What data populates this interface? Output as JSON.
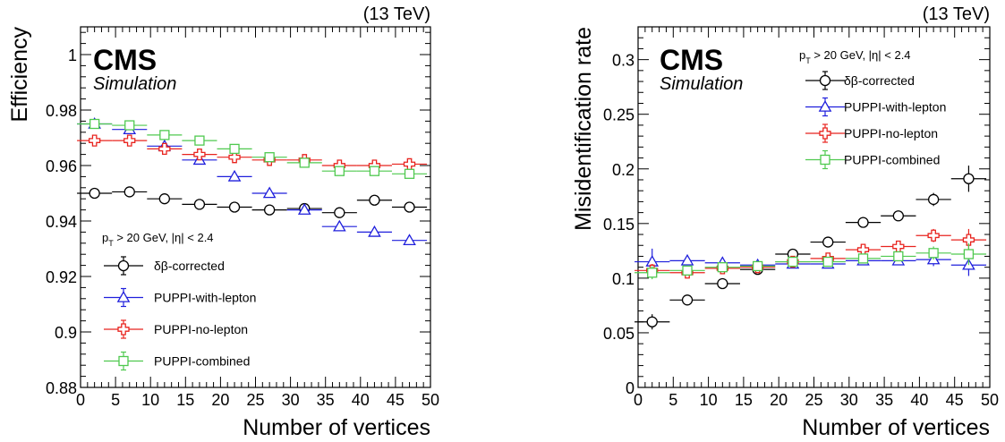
{
  "chart_data": [
    {
      "type": "scatter",
      "energy": "(13 TeV)",
      "experiment": "CMS",
      "sublabel": "Simulation",
      "cut_label": {
        "p": "p",
        "sub": "T",
        "rest": " > 20 GeV, |η| < 2.4"
      },
      "xlabel": "Number of vertices",
      "ylabel": "Efficiency",
      "xlim": [
        0,
        50
      ],
      "ylim": [
        0.88,
        1.01
      ],
      "xticks": [
        0,
        5,
        10,
        15,
        20,
        25,
        30,
        35,
        40,
        45,
        50
      ],
      "yticks": [
        0.88,
        0.9,
        0.92,
        0.94,
        0.96,
        0.98,
        1
      ],
      "ytick_labels": [
        "0.88",
        "0.9",
        "0.92",
        "0.94",
        "0.96",
        "0.98",
        "1"
      ],
      "x": [
        2,
        7,
        12,
        17,
        22,
        27,
        32,
        37,
        42,
        47
      ],
      "xerr": 2.5,
      "legend_position": "bottom-left",
      "series": [
        {
          "name": "δβ-corrected",
          "marker": "circle",
          "color": "#000000",
          "values": [
            0.95,
            0.9505,
            0.948,
            0.946,
            0.945,
            0.944,
            0.9445,
            0.943,
            0.9475,
            0.945
          ],
          "yerr": [
            0.0015,
            0.0012,
            0.001,
            0.001,
            0.001,
            0.001,
            0.001,
            0.001,
            0.001,
            0.0015
          ]
        },
        {
          "name": "PUPPI-with-lepton",
          "marker": "triangle",
          "color": "#1f1fdc",
          "values": [
            0.975,
            0.973,
            0.967,
            0.962,
            0.956,
            0.95,
            0.944,
            0.938,
            0.936,
            0.933
          ],
          "yerr": [
            0.0012,
            0.001,
            0.001,
            0.001,
            0.001,
            0.001,
            0.001,
            0.001,
            0.001,
            0.0015
          ]
        },
        {
          "name": "PUPPI-no-lepton",
          "marker": "cross",
          "color": "#e8231e",
          "values": [
            0.969,
            0.969,
            0.966,
            0.964,
            0.963,
            0.962,
            0.962,
            0.96,
            0.96,
            0.9605
          ],
          "yerr": [
            0.0012,
            0.001,
            0.001,
            0.001,
            0.001,
            0.001,
            0.001,
            0.001,
            0.001,
            0.0015
          ]
        },
        {
          "name": "PUPPI-combined",
          "marker": "square",
          "color": "#4fc94f",
          "values": [
            0.975,
            0.9745,
            0.971,
            0.969,
            0.966,
            0.963,
            0.961,
            0.958,
            0.958,
            0.957
          ],
          "yerr": [
            0.0012,
            0.001,
            0.001,
            0.001,
            0.001,
            0.001,
            0.001,
            0.001,
            0.001,
            0.0015
          ]
        }
      ]
    },
    {
      "type": "scatter",
      "energy": "(13 TeV)",
      "experiment": "CMS",
      "sublabel": "Simulation",
      "cut_label": {
        "p": "p",
        "sub": "T",
        "rest": " > 20 GeV, |η| < 2.4"
      },
      "xlabel": "Number of vertices",
      "ylabel": "Misidentification rate",
      "xlim": [
        0,
        50
      ],
      "ylim": [
        0,
        0.33
      ],
      "xticks": [
        0,
        5,
        10,
        15,
        20,
        25,
        30,
        35,
        40,
        45,
        50
      ],
      "yticks": [
        0,
        0.05,
        0.1,
        0.15,
        0.2,
        0.25,
        0.3
      ],
      "ytick_labels": [
        "0",
        "0.05",
        "0.1",
        "0.15",
        "0.2",
        "0.25",
        "0.3"
      ],
      "x": [
        2,
        7,
        12,
        17,
        22,
        27,
        32,
        37,
        42,
        47
      ],
      "xerr": 2.5,
      "legend_position": "top-right",
      "series": [
        {
          "name": "δβ-corrected",
          "marker": "circle",
          "color": "#000000",
          "values": [
            0.06,
            0.08,
            0.095,
            0.108,
            0.122,
            0.133,
            0.151,
            0.157,
            0.172,
            0.191
          ],
          "yerr": [
            0.007,
            0.003,
            0.002,
            0.002,
            0.002,
            0.003,
            0.003,
            0.004,
            0.006,
            0.012
          ]
        },
        {
          "name": "PUPPI-with-lepton",
          "marker": "triangle",
          "color": "#1f1fdc",
          "values": [
            0.115,
            0.116,
            0.114,
            0.112,
            0.113,
            0.113,
            0.116,
            0.116,
            0.117,
            0.112
          ],
          "yerr": [
            0.012,
            0.004,
            0.003,
            0.002,
            0.002,
            0.002,
            0.003,
            0.004,
            0.006,
            0.01
          ]
        },
        {
          "name": "PUPPI-no-lepton",
          "marker": "cross",
          "color": "#e8231e",
          "values": [
            0.107,
            0.105,
            0.109,
            0.11,
            0.115,
            0.118,
            0.126,
            0.129,
            0.139,
            0.135
          ],
          "yerr": [
            0.006,
            0.003,
            0.002,
            0.002,
            0.002,
            0.002,
            0.003,
            0.004,
            0.006,
            0.01
          ]
        },
        {
          "name": "PUPPI-combined",
          "marker": "square",
          "color": "#4fc94f",
          "values": [
            0.105,
            0.107,
            0.11,
            0.111,
            0.115,
            0.115,
            0.118,
            0.12,
            0.123,
            0.122
          ],
          "yerr": [
            0.006,
            0.003,
            0.002,
            0.002,
            0.002,
            0.002,
            0.003,
            0.004,
            0.006,
            0.01
          ]
        }
      ]
    }
  ]
}
